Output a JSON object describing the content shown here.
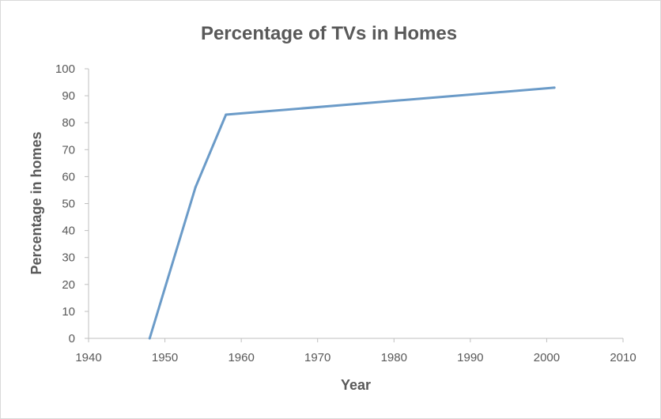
{
  "chart_data": {
    "type": "line",
    "title": "Percentage of TVs in Homes",
    "xlabel": "Year",
    "ylabel": "Percentage in homes",
    "xlim": [
      1940,
      2010
    ],
    "ylim": [
      0,
      100
    ],
    "x_ticks": [
      1940,
      1950,
      1960,
      1970,
      1980,
      1990,
      2000,
      2010
    ],
    "y_ticks": [
      0,
      10,
      20,
      30,
      40,
      50,
      60,
      70,
      80,
      90,
      100
    ],
    "grid": false,
    "series": [
      {
        "color": "#6b9bc8",
        "x": [
          1948,
          1954,
          1958,
          2001
        ],
        "y": [
          0,
          56,
          83,
          93
        ]
      }
    ]
  }
}
